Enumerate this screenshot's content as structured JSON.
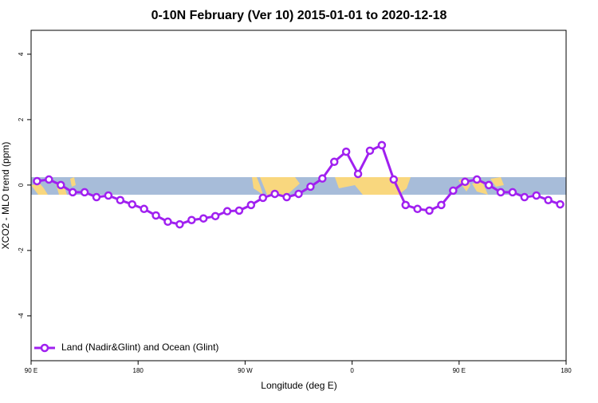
{
  "chart_data": {
    "type": "line",
    "title": "0-10N February (Ver 10)   2015-01-01 to 2020-12-18",
    "x_label": "Longitude (deg E)",
    "y_label": "XCO2 - MLO trend (ppm)",
    "x": [
      95,
      105,
      115,
      125,
      135,
      145,
      155,
      165,
      175,
      185,
      195,
      205,
      215,
      225,
      235,
      245,
      255,
      265,
      275,
      285,
      295,
      305,
      315,
      325,
      335,
      345,
      355,
      365,
      375,
      385,
      395,
      405,
      415,
      425,
      435,
      445,
      455,
      465,
      475,
      485,
      495,
      505,
      515,
      525,
      535
    ],
    "series": [
      {
        "name": "Land (Nadir&Glint) and Ocean (Glint)",
        "color": "#a020f0",
        "values": [
          0.12,
          0.17,
          0.0,
          -0.22,
          -0.22,
          -0.37,
          -0.32,
          -0.46,
          -0.59,
          -0.73,
          -0.93,
          -1.12,
          -1.2,
          -1.07,
          -1.02,
          -0.95,
          -0.8,
          -0.78,
          -0.61,
          -0.39,
          -0.27,
          -0.37,
          -0.27,
          -0.05,
          0.2,
          0.71,
          1.02,
          0.34,
          1.05,
          1.22,
          0.17,
          -0.61,
          -0.73,
          -0.78,
          -0.61,
          -0.17,
          0.1,
          0.17,
          0.0,
          -0.22,
          -0.22,
          -0.37,
          -0.32,
          -0.46,
          -0.59
        ]
      }
    ],
    "xlim": [
      90,
      540
    ],
    "xticks": [
      {
        "value": 90,
        "label": "90 E"
      },
      {
        "value": 180,
        "label": "180"
      },
      {
        "value": 270,
        "label": "90 W"
      },
      {
        "value": 360,
        "label": "0"
      },
      {
        "value": 450,
        "label": "90 E"
      },
      {
        "value": 540,
        "label": "180"
      }
    ],
    "ylim": [
      -5.37,
      4.73
    ],
    "yticks": [
      -4,
      -2,
      0,
      2,
      4
    ],
    "legend": "bottom-left"
  }
}
